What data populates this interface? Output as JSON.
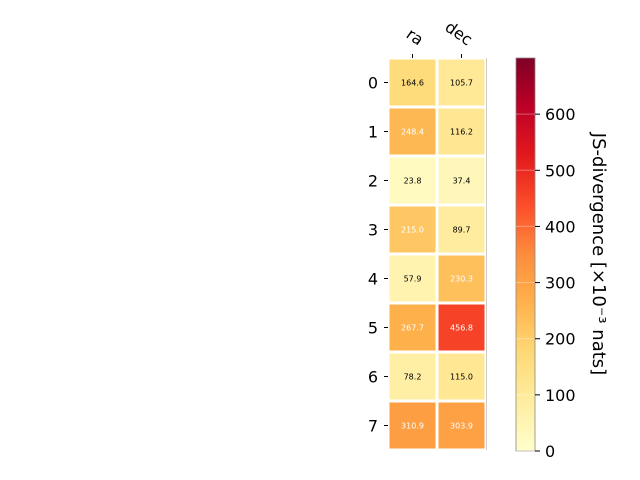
{
  "chart_data": {
    "type": "heatmap",
    "columns": [
      "ra",
      "dec"
    ],
    "rows": [
      "0",
      "1",
      "2",
      "3",
      "4",
      "5",
      "6",
      "7"
    ],
    "values": [
      [
        164.6,
        105.7
      ],
      [
        248.4,
        116.2
      ],
      [
        23.8,
        37.4
      ],
      [
        215.0,
        89.7
      ],
      [
        57.9,
        230.3
      ],
      [
        267.7,
        456.8
      ],
      [
        78.2,
        115.0
      ],
      [
        310.9,
        303.9
      ]
    ],
    "value_labels": [
      [
        "164.6",
        "105.7"
      ],
      [
        "248.4",
        "116.2"
      ],
      [
        "23.8",
        "37.4"
      ],
      [
        "215.0",
        "89.7"
      ],
      [
        "57.9",
        "230.3"
      ],
      [
        "267.7",
        "456.8"
      ],
      [
        "78.2",
        "115.0"
      ],
      [
        "310.9",
        "303.9"
      ]
    ],
    "colorbar": {
      "label": "JS-divergence [×10⁻³ nats]",
      "range": [
        0,
        700
      ],
      "ticks": [
        0,
        100,
        200,
        300,
        400,
        500,
        600
      ],
      "colormap": "YlOrRd"
    },
    "grid": false
  }
}
